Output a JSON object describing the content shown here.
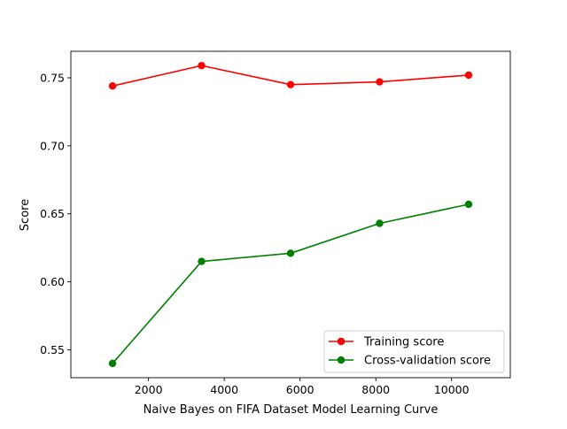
{
  "chart_data": {
    "type": "line",
    "title": "",
    "xlabel": "Naive Bayes on FIFA Dataset Model Learning Curve",
    "ylabel": "Score",
    "x": [
      1050,
      3400,
      5750,
      8100,
      10450
    ],
    "xlim": [
      -50,
      11550
    ],
    "ylim": [
      0.5295,
      0.7695
    ],
    "xticks": [
      2000,
      4000,
      6000,
      8000,
      10000
    ],
    "xtick_labels": [
      "2000",
      "4000",
      "6000",
      "8000",
      "10000"
    ],
    "yticks": [
      0.55,
      0.6,
      0.65,
      0.7,
      0.75
    ],
    "ytick_labels": [
      "0.55",
      "0.60",
      "0.65",
      "0.70",
      "0.75"
    ],
    "grid": false,
    "legend_position": "lower-right",
    "series": [
      {
        "name": "Training score",
        "color": "#ff0000",
        "marker": "circle",
        "values": [
          0.744,
          0.759,
          0.745,
          0.747,
          0.752
        ]
      },
      {
        "name": "Cross-validation score",
        "color": "#008000",
        "marker": "circle",
        "values": [
          0.54,
          0.615,
          0.621,
          0.643,
          0.657
        ]
      }
    ]
  }
}
